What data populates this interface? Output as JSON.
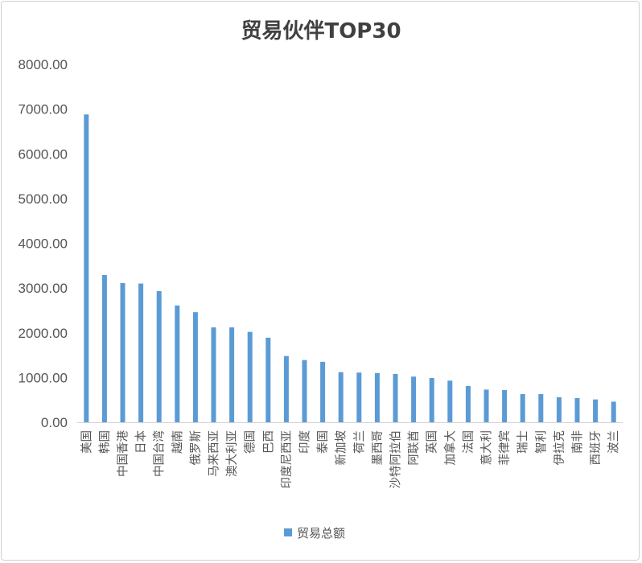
{
  "chart_data": {
    "type": "bar",
    "title": "贸易伙伴TOP30",
    "xlabel": "",
    "ylabel": "",
    "ylim": [
      0,
      8000
    ],
    "yticks": [
      "0.00",
      "1000.00",
      "2000.00",
      "3000.00",
      "4000.00",
      "5000.00",
      "6000.00",
      "7000.00",
      "8000.00"
    ],
    "grid": false,
    "legend_position": "bottom",
    "categories": [
      "美国",
      "韩国",
      "中国香港",
      "日本",
      "中国台湾",
      "越南",
      "俄罗斯",
      "马来西亚",
      "澳大利亚",
      "德国",
      "巴西",
      "印度尼西亚",
      "印度",
      "泰国",
      "新加坡",
      "荷兰",
      "墨西哥",
      "沙特阿拉伯",
      "阿联酋",
      "英国",
      "加拿大",
      "法国",
      "意大利",
      "菲律宾",
      "瑞士",
      "智利",
      "伊拉克",
      "南非",
      "西班牙",
      "波兰"
    ],
    "series": [
      {
        "name": "贸易总额",
        "color": "#5b9bd5",
        "values": [
          6880,
          3290,
          3110,
          3100,
          2930,
          2610,
          2460,
          2120,
          2120,
          2020,
          1890,
          1480,
          1390,
          1350,
          1120,
          1110,
          1100,
          1080,
          1020,
          990,
          930,
          810,
          730,
          720,
          630,
          630,
          560,
          540,
          510,
          460
        ]
      }
    ]
  }
}
